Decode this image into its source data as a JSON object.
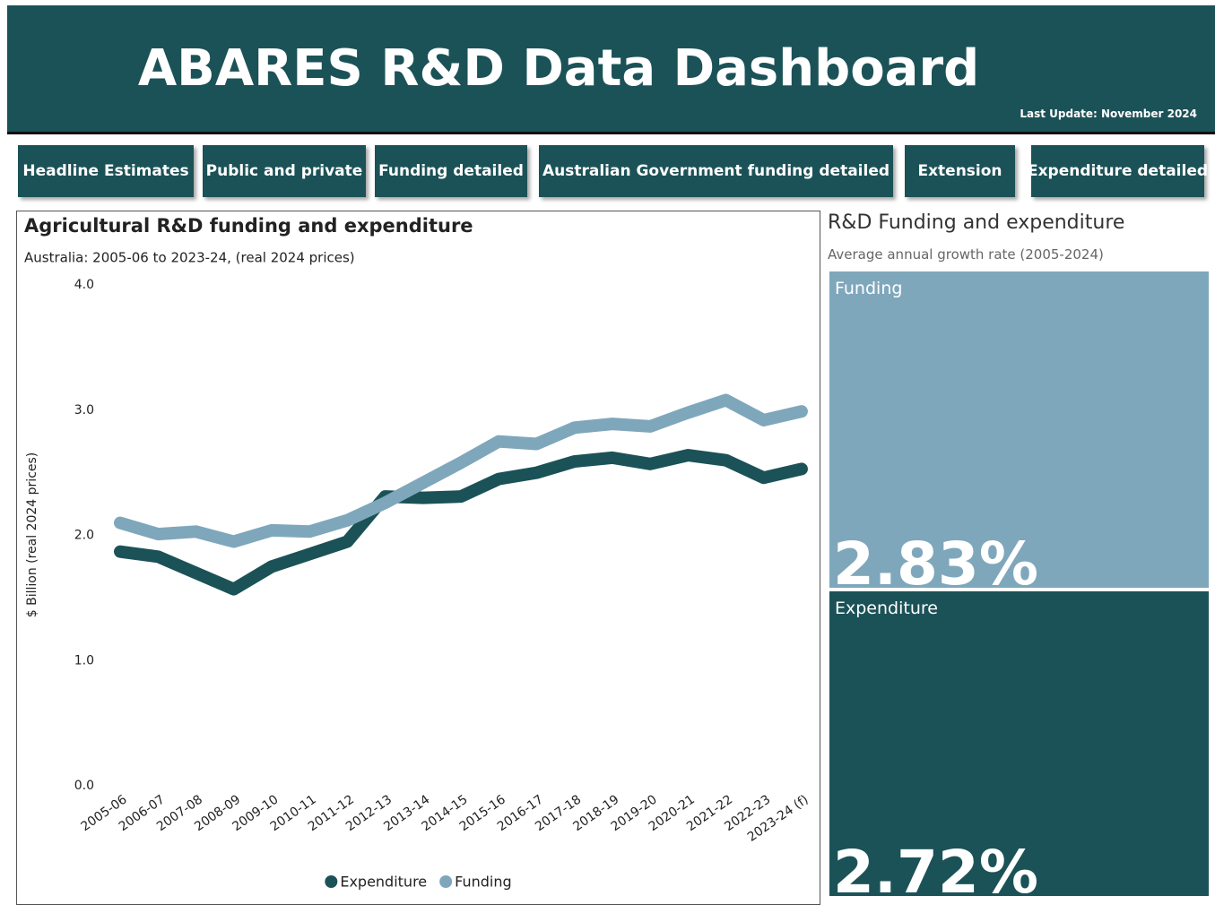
{
  "header": {
    "title": "ABARES R&D Data Dashboard",
    "last_update": "Last Update: November 2024"
  },
  "nav": [
    "Headline Estimates",
    "Public and private",
    "Funding detailed",
    "Australian Government funding detailed",
    "Extension",
    "Expenditure detailed"
  ],
  "chart_data": {
    "type": "line",
    "title": "Agricultural R&D funding and expenditure",
    "subtitle": "Australia: 2005-06 to 2023-24, (real 2024 prices)",
    "y_label": "$ Billion (real 2024 prices)",
    "categories": [
      "2005-06",
      "2006-07",
      "2007-08",
      "2008-09",
      "2009-10",
      "2010-11",
      "2011-12",
      "2012-13",
      "2013-14",
      "2014-15",
      "2015-16",
      "2016-17",
      "2017-18",
      "2018-19",
      "2019-20",
      "2020-21",
      "2021-22",
      "2022-23",
      "2023-24 (f)"
    ],
    "series": [
      {
        "name": "Expenditure",
        "color": "#1b5257",
        "values": [
          1.87,
          1.83,
          1.7,
          1.57,
          1.75,
          1.85,
          1.95,
          2.31,
          2.3,
          2.31,
          2.45,
          2.5,
          2.59,
          2.62,
          2.57,
          2.64,
          2.6,
          2.46,
          2.53
        ]
      },
      {
        "name": "Funding",
        "color": "#7fa7bb",
        "values": [
          2.1,
          2.01,
          2.03,
          1.95,
          2.04,
          2.03,
          2.12,
          2.26,
          2.42,
          2.58,
          2.75,
          2.73,
          2.86,
          2.89,
          2.87,
          2.98,
          3.08,
          2.92,
          2.99
        ]
      }
    ],
    "ylim": [
      0,
      4
    ],
    "yticks": [
      {
        "value": 0,
        "label": "0.0"
      },
      {
        "value": 1,
        "label": "1.0"
      },
      {
        "value": 2,
        "label": "2.0"
      },
      {
        "value": 3,
        "label": "3.0"
      },
      {
        "value": 4,
        "label": "4.0"
      }
    ],
    "grid": false,
    "legend": "bottom"
  },
  "summary": {
    "title": "R&D Funding and expenditure",
    "subtitle": "Average annual growth rate (2005-2024)",
    "tiles": [
      {
        "label": "Funding",
        "value": "2.83%",
        "color": "#7fa7bb"
      },
      {
        "label": "Expenditure",
        "value": "2.72%",
        "color": "#1b5257"
      }
    ]
  }
}
